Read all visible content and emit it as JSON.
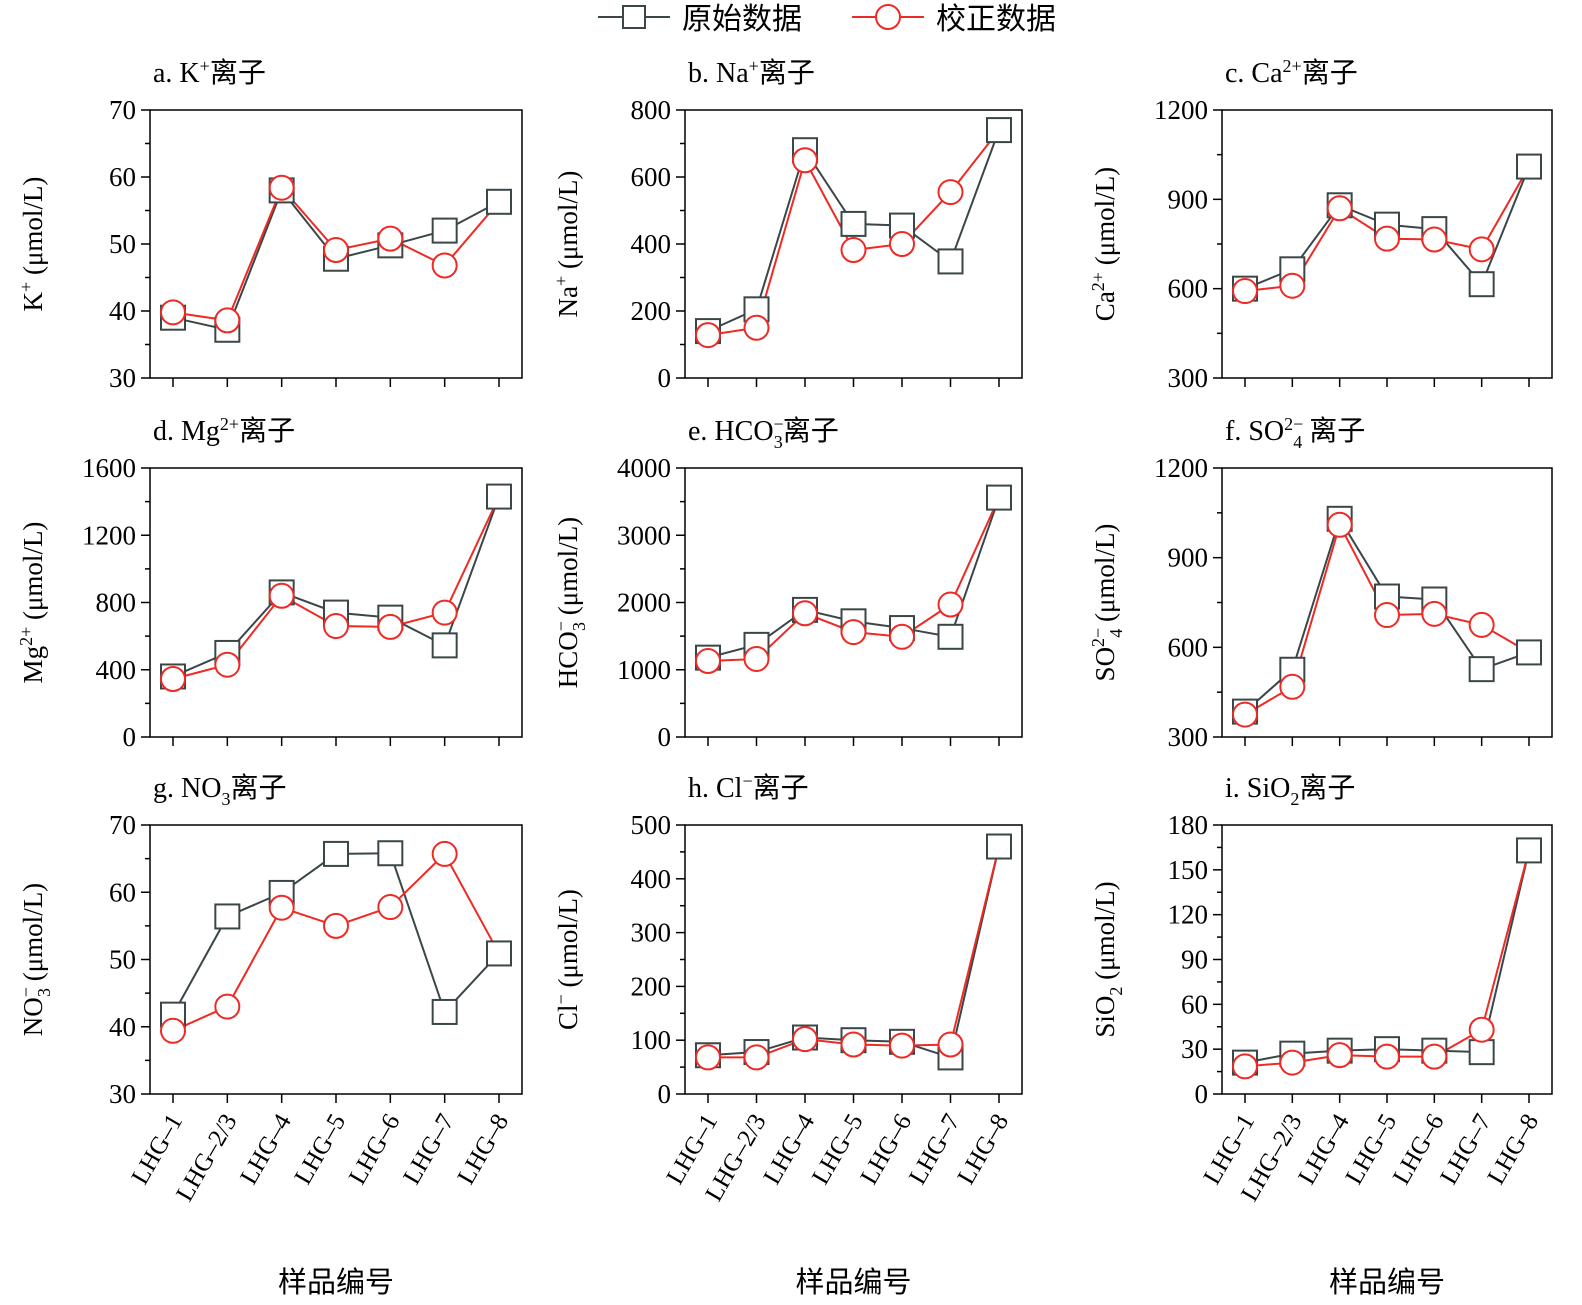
{
  "legend": {
    "original_label": "原始数据",
    "corrected_label": "校正数据"
  },
  "colors": {
    "original": "#3a4648",
    "corrected": "#ee2a24",
    "axis": "#000000"
  },
  "shared_xlabel": "样品编号",
  "chart_data": [
    {
      "type": "line",
      "title_prefix": "a. K",
      "title_sup": "+",
      "title_sub": "",
      "title_suffix": "离子",
      "ylabel_base": "K",
      "ylabel_sup": "+",
      "ylabel_sub": "",
      "ylabel_unit": " (μmol/L)",
      "ylim": [
        30,
        70
      ],
      "yticks": [
        30,
        40,
        50,
        60,
        70
      ],
      "categories": [
        "LHG–1",
        "LHG–2/3",
        "LHG–4",
        "LHG–5",
        "LHG–6",
        "LHG–7",
        "LHG–8"
      ],
      "series": [
        {
          "name": "原始数据",
          "values": [
            39,
            37.2,
            58,
            47.8,
            49.8,
            52,
            56.3
          ]
        },
        {
          "name": "校正数据",
          "values": [
            39.8,
            38.6,
            58.4,
            49.1,
            50.8,
            46.8,
            null
          ]
        }
      ]
    },
    {
      "type": "line",
      "title_prefix": "b. Na",
      "title_sup": "+",
      "title_sub": "",
      "title_suffix": "离子",
      "ylabel_base": "Na",
      "ylabel_sup": "+",
      "ylabel_sub": "",
      "ylabel_unit": " (μmol/L)",
      "ylim": [
        0,
        800
      ],
      "yticks": [
        0,
        200,
        400,
        600,
        800
      ],
      "categories": [
        "LHG–1",
        "LHG–2/3",
        "LHG–4",
        "LHG–5",
        "LHG–6",
        "LHG–7",
        "LHG–8"
      ],
      "series": [
        {
          "name": "原始数据",
          "values": [
            140,
            205,
            680,
            460,
            455,
            348,
            740
          ]
        },
        {
          "name": "校正数据",
          "values": [
            128,
            150,
            650,
            382,
            400,
            555,
            null
          ]
        }
      ]
    },
    {
      "type": "line",
      "title_prefix": "c. Ca",
      "title_sup": "2+",
      "title_sub": "",
      "title_suffix": "离子",
      "ylabel_base": "Ca",
      "ylabel_sup": "2+",
      "ylabel_sub": "",
      "ylabel_unit": " (μmol/L)",
      "ylim": [
        300,
        1200
      ],
      "yticks": [
        300,
        600,
        900,
        1200
      ],
      "categories": [
        "LHG–1",
        "LHG–2/3",
        "LHG–4",
        "LHG–5",
        "LHG–6",
        "LHG–7",
        "LHG–8"
      ],
      "series": [
        {
          "name": "原始数据",
          "values": [
            600,
            665,
            880,
            815,
            800,
            615,
            1010
          ]
        },
        {
          "name": "校正数据",
          "values": [
            592,
            610,
            870,
            768,
            765,
            732,
            null
          ]
        }
      ]
    },
    {
      "type": "line",
      "title_prefix": "d. Mg",
      "title_sup": "2+",
      "title_sub": "",
      "title_suffix": "离子",
      "ylabel_base": "Mg",
      "ylabel_sup": "2+",
      "ylabel_sub": "",
      "ylabel_unit": " (μmol/L)",
      "ylim": [
        0,
        1600
      ],
      "yticks": [
        0,
        400,
        800,
        1200,
        1600
      ],
      "categories": [
        "LHG–1",
        "LHG–2/3",
        "LHG–4",
        "LHG–5",
        "LHG–6",
        "LHG–7",
        "LHG–8"
      ],
      "series": [
        {
          "name": "原始数据",
          "values": [
            360,
            500,
            860,
            740,
            710,
            545,
            1430
          ]
        },
        {
          "name": "校正数据",
          "values": [
            345,
            430,
            840,
            660,
            655,
            740,
            null
          ]
        }
      ]
    },
    {
      "type": "line",
      "title_prefix": "e. HCO",
      "title_sup": "−",
      "title_sub": "3",
      "title_suffix": "离子",
      "ylabel_base": "HCO",
      "ylabel_sup": "−",
      "ylabel_sub": "3",
      "ylabel_unit": " (μmol/L)",
      "ylim": [
        0,
        4000
      ],
      "yticks": [
        0,
        1000,
        2000,
        3000,
        4000
      ],
      "categories": [
        "LHG–1",
        "LHG–2/3",
        "LHG–4",
        "LHG–5",
        "LHG–6",
        "LHG–7",
        "LHG–8"
      ],
      "series": [
        {
          "name": "原始数据",
          "values": [
            1180,
            1370,
            1890,
            1720,
            1620,
            1490,
            3560
          ]
        },
        {
          "name": "校正数据",
          "values": [
            1130,
            1160,
            1840,
            1560,
            1490,
            1970,
            null
          ]
        }
      ]
    },
    {
      "type": "line",
      "title_prefix": "f. SO",
      "title_sup": "2−",
      "title_sub": "4",
      "title_suffix": " 离子",
      "ylabel_base": "SO",
      "ylabel_sup": "2−",
      "ylabel_sub": "4",
      "ylabel_unit": " (μmol/L)",
      "ylim": [
        300,
        1200
      ],
      "yticks": [
        300,
        600,
        900,
        1200
      ],
      "categories": [
        "LHG–1",
        "LHG–2/3",
        "LHG–4",
        "LHG–5",
        "LHG–6",
        "LHG–7",
        "LHG–8"
      ],
      "series": [
        {
          "name": "原始数据",
          "values": [
            385,
            525,
            1030,
            770,
            760,
            527,
            583
          ]
        },
        {
          "name": "校正数据",
          "values": [
            375,
            468,
            1010,
            708,
            712,
            675,
            null
          ]
        }
      ]
    },
    {
      "type": "line",
      "title_prefix": "g. NO",
      "title_sup": "",
      "title_sub": "3",
      "title_suffix": "离子",
      "ylabel_base": "NO",
      "ylabel_sup": "−",
      "ylabel_sub": "3",
      "ylabel_unit": " (μmol/L)",
      "ylim": [
        30,
        70
      ],
      "yticks": [
        30,
        40,
        50,
        60,
        70
      ],
      "categories": [
        "LHG–1",
        "LHG–2/3",
        "LHG–4",
        "LHG–5",
        "LHG–6",
        "LHG–7",
        "LHG–8"
      ],
      "series": [
        {
          "name": "原始数据",
          "values": [
            41.8,
            56.4,
            59.9,
            65.7,
            65.8,
            42.2,
            50.9
          ]
        },
        {
          "name": "校正数据",
          "values": [
            39.4,
            43,
            57.7,
            55,
            57.8,
            65.7,
            null
          ]
        }
      ]
    },
    {
      "type": "line",
      "title_prefix": "h. Cl",
      "title_sup": "−",
      "title_sub": "",
      "title_suffix": "离子",
      "ylabel_base": "Cl",
      "ylabel_sup": "−",
      "ylabel_sub": "",
      "ylabel_unit": " (μmol/L)",
      "ylim": [
        0,
        500
      ],
      "yticks": [
        0,
        100,
        200,
        300,
        400,
        500
      ],
      "categories": [
        "LHG–1",
        "LHG–2/3",
        "LHG–4",
        "LHG–5",
        "LHG–6",
        "LHG–7",
        "LHG–8"
      ],
      "series": [
        {
          "name": "原始数据",
          "values": [
            72,
            78,
            105,
            100,
            97,
            68,
            460
          ]
        },
        {
          "name": "校正数据",
          "values": [
            68,
            68,
            102,
            92,
            90,
            92,
            null
          ]
        }
      ]
    },
    {
      "type": "line",
      "title_prefix": "i. SiO",
      "title_sup": "",
      "title_sub": "2",
      "title_suffix": "离子",
      "ylabel_base": "SiO",
      "ylabel_sup": "",
      "ylabel_sub": "2",
      "ylabel_unit": " (μmol/L)",
      "ylim": [
        0,
        180
      ],
      "yticks": [
        0,
        30,
        60,
        90,
        120,
        150,
        180
      ],
      "categories": [
        "LHG–1",
        "LHG–2/3",
        "LHG–4",
        "LHG–5",
        "LHG–6",
        "LHG–7",
        "LHG–8"
      ],
      "series": [
        {
          "name": "原始数据",
          "values": [
            21,
            27,
            29,
            30,
            29,
            28,
            163
          ]
        },
        {
          "name": "校正数据",
          "values": [
            18.5,
            21,
            26,
            25,
            25,
            43,
            null
          ]
        }
      ]
    }
  ]
}
